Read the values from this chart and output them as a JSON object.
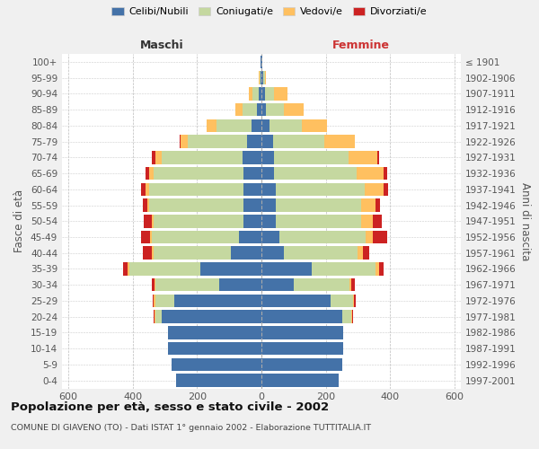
{
  "age_groups": [
    "0-4",
    "5-9",
    "10-14",
    "15-19",
    "20-24",
    "25-29",
    "30-34",
    "35-39",
    "40-44",
    "45-49",
    "50-54",
    "55-59",
    "60-64",
    "65-69",
    "70-74",
    "75-79",
    "80-84",
    "85-89",
    "90-94",
    "95-99",
    "100+"
  ],
  "birth_years": [
    "1997-2001",
    "1992-1996",
    "1987-1991",
    "1982-1986",
    "1977-1981",
    "1972-1976",
    "1967-1971",
    "1962-1966",
    "1957-1961",
    "1952-1956",
    "1947-1951",
    "1942-1946",
    "1937-1941",
    "1932-1936",
    "1927-1931",
    "1922-1926",
    "1917-1921",
    "1912-1916",
    "1907-1911",
    "1902-1906",
    "≤ 1901"
  ],
  "male": {
    "celibi": [
      265,
      280,
      290,
      290,
      310,
      270,
      130,
      190,
      95,
      70,
      55,
      55,
      55,
      55,
      60,
      45,
      30,
      15,
      8,
      3,
      2
    ],
    "coniugati": [
      0,
      0,
      0,
      0,
      20,
      60,
      200,
      220,
      240,
      270,
      280,
      295,
      295,
      280,
      250,
      185,
      110,
      45,
      20,
      3,
      1
    ],
    "vedovi": [
      0,
      0,
      0,
      0,
      3,
      5,
      3,
      5,
      5,
      5,
      5,
      5,
      10,
      15,
      20,
      20,
      30,
      20,
      10,
      1,
      0
    ],
    "divorziati": [
      0,
      0,
      0,
      0,
      2,
      3,
      8,
      15,
      30,
      30,
      25,
      15,
      15,
      10,
      10,
      5,
      0,
      0,
      0,
      0,
      0
    ]
  },
  "female": {
    "nubili": [
      240,
      250,
      255,
      255,
      250,
      215,
      100,
      155,
      70,
      55,
      45,
      45,
      45,
      40,
      40,
      35,
      25,
      15,
      10,
      5,
      2
    ],
    "coniugate": [
      0,
      0,
      0,
      0,
      30,
      70,
      175,
      200,
      230,
      270,
      265,
      265,
      275,
      255,
      230,
      160,
      100,
      55,
      30,
      5,
      1
    ],
    "vedove": [
      0,
      0,
      0,
      0,
      2,
      3,
      5,
      10,
      15,
      20,
      35,
      45,
      60,
      85,
      90,
      95,
      80,
      60,
      40,
      5,
      0
    ],
    "divorziate": [
      0,
      0,
      0,
      0,
      2,
      5,
      10,
      15,
      20,
      45,
      30,
      15,
      15,
      10,
      5,
      0,
      0,
      0,
      0,
      0,
      0
    ]
  },
  "colors": {
    "celibi": "#4472a8",
    "coniugati": "#c5d8a0",
    "vedovi": "#ffc060",
    "divorziati": "#cc2222"
  },
  "title": "Popolazione per età, sesso e stato civile - 2002",
  "subtitle": "COMUNE DI GIAVENO (TO) - Dati ISTAT 1° gennaio 2002 - Elaborazione TUTTITALIA.IT",
  "ylabel": "Fasce di età",
  "ylabel_right": "Anni di nascita",
  "xlabel_left": "Maschi",
  "xlabel_right": "Femmine",
  "xlim": 620,
  "legend_labels": [
    "Celibi/Nubili",
    "Coniugati/e",
    "Vedovi/e",
    "Divorziati/e"
  ],
  "background_color": "#f0f0f0",
  "plot_background": "#ffffff"
}
